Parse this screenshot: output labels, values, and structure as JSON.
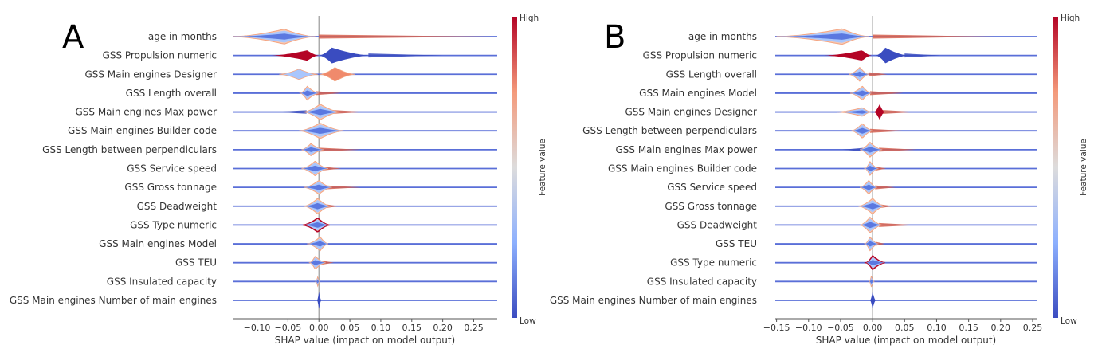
{
  "colors": {
    "low": "#3a4cc0",
    "high": "#b40426",
    "low_light": "#a9c6fd",
    "high_light": "#f08a6c",
    "mixed_edge": "#f4a582"
  },
  "chart_data": [
    {
      "type": "violin",
      "panel_letter": "A",
      "xlabel": "SHAP value (impact on model output)",
      "xlim": [
        -0.138,
        0.288
      ],
      "x_ticks": [
        -0.1,
        -0.05,
        0.0,
        0.05,
        0.1,
        0.15,
        0.2,
        0.25
      ],
      "x_tick_labels": [
        "−0.10",
        "−0.05",
        "0.00",
        "0.05",
        "0.10",
        "0.15",
        "0.20",
        "0.25"
      ],
      "colorbar": {
        "label": "Feature value",
        "high": "High",
        "low": "Low"
      },
      "features": [
        {
          "name": "age in months",
          "lobes": [
            {
              "kind": "mixed",
              "min": -0.138,
              "mode": -0.056,
              "max": -0.006,
              "density": 0.85
            }
          ],
          "tails": [
            {
              "kind": "high",
              "min": 0,
              "max": 0.28
            }
          ]
        },
        {
          "name": "GSS Propulsion numeric",
          "lobes": [
            {
              "kind": "high",
              "min": -0.077,
              "mode": -0.019,
              "max": 0,
              "density": 0.6
            },
            {
              "kind": "low",
              "min": 0,
              "mode": 0.021,
              "max": 0.084,
              "density": 0.9
            }
          ],
          "tails": [
            {
              "kind": "low",
              "min": 0.08,
              "max": 0.2
            }
          ]
        },
        {
          "name": "GSS Main engines Designer",
          "lobes": [
            {
              "kind": "low_light",
              "min": -0.064,
              "mode": -0.032,
              "max": -0.002,
              "density": 0.6
            },
            {
              "kind": "high_light",
              "min": 0.002,
              "mode": 0.026,
              "max": 0.058,
              "density": 0.8
            }
          ],
          "tails": []
        },
        {
          "name": "GSS Length overall",
          "lobes": [
            {
              "kind": "mixed",
              "min": -0.03,
              "mode": -0.019,
              "max": 0,
              "density": 0.8
            }
          ],
          "tails": [
            {
              "kind": "high",
              "min": -0.005,
              "max": 0.036
            }
          ]
        },
        {
          "name": "GSS Main engines Max power",
          "lobes": [
            {
              "kind": "mixed",
              "min": -0.025,
              "mode": 0.002,
              "max": 0.035,
              "density": 0.9
            }
          ],
          "tails": [
            {
              "kind": "low",
              "min": -0.07,
              "max": -0.02
            },
            {
              "kind": "high",
              "min": 0.02,
              "max": 0.075
            }
          ]
        },
        {
          "name": "GSS Main engines Builder code",
          "lobes": [
            {
              "kind": "mixed",
              "min": -0.032,
              "mode": 0.002,
              "max": 0.04,
              "density": 0.9
            }
          ],
          "tails": []
        },
        {
          "name": "GSS Length between perpendiculars",
          "lobes": [
            {
              "kind": "mixed",
              "min": -0.028,
              "mode": -0.013,
              "max": 0.008,
              "density": 0.7
            }
          ],
          "tails": [
            {
              "kind": "high",
              "min": 0,
              "max": 0.067
            }
          ]
        },
        {
          "name": "GSS Service speed",
          "lobes": [
            {
              "kind": "mixed",
              "min": -0.028,
              "mode": -0.006,
              "max": 0.015,
              "density": 0.85
            }
          ],
          "tails": [
            {
              "kind": "high",
              "min": 0.005,
              "max": 0.036
            }
          ]
        },
        {
          "name": "GSS Gross tonnage",
          "lobes": [
            {
              "kind": "mixed",
              "min": -0.024,
              "mode": 0,
              "max": 0.021,
              "density": 0.8
            }
          ],
          "tails": [
            {
              "kind": "high",
              "min": 0.01,
              "max": 0.067
            }
          ]
        },
        {
          "name": "GSS Deadweight",
          "lobes": [
            {
              "kind": "mixed",
              "min": -0.024,
              "mode": -0.002,
              "max": 0.019,
              "density": 0.9
            }
          ],
          "tails": [
            {
              "kind": "high",
              "min": 0.01,
              "max": 0.032
            }
          ]
        },
        {
          "name": "GSS Type numeric",
          "lobes": [
            {
              "kind": "mixed_dark",
              "min": -0.026,
              "mode": -0.002,
              "max": 0.017,
              "density": 0.8
            }
          ],
          "tails": []
        },
        {
          "name": "GSS Main engines Model",
          "lobes": [
            {
              "kind": "mixed",
              "min": -0.019,
              "mode": 0.002,
              "max": 0.015,
              "density": 0.8
            }
          ],
          "tails": []
        },
        {
          "name": "GSS TEU",
          "lobes": [
            {
              "kind": "mixed",
              "min": -0.015,
              "mode": -0.006,
              "max": 0.011,
              "density": 0.75
            }
          ],
          "tails": [
            {
              "kind": "high",
              "min": 0.005,
              "max": 0.024
            }
          ]
        },
        {
          "name": "GSS Insulated capacity",
          "lobes": [
            {
              "kind": "mixed",
              "min": -0.005,
              "mode": -0.002,
              "max": 0.001,
              "density": 0.5
            }
          ],
          "tails": []
        },
        {
          "name": "GSS Main engines Number of main engines",
          "lobes": [
            {
              "kind": "low",
              "min": -0.003,
              "mode": 0,
              "max": 0.004,
              "density": 1
            }
          ],
          "tails": []
        }
      ]
    },
    {
      "type": "violin",
      "panel_letter": "B",
      "xlabel": "SHAP value (impact on model output)",
      "xlim": [
        -0.152,
        0.2575
      ],
      "x_ticks": [
        -0.15,
        -0.1,
        -0.05,
        0.0,
        0.05,
        0.1,
        0.15,
        0.2,
        0.25
      ],
      "x_tick_labels": [
        "−0.15",
        "−0.10",
        "−0.05",
        "0.00",
        "0.05",
        "0.10",
        "0.15",
        "0.20",
        "0.25"
      ],
      "colorbar": {
        "label": "Feature value",
        "high": "High",
        "low": "Low"
      },
      "features": [
        {
          "name": "age in months",
          "lobes": [
            {
              "kind": "mixed",
              "min": -0.15,
              "mode": -0.047,
              "max": -0.006,
              "density": 0.9
            }
          ],
          "tails": [
            {
              "kind": "high",
              "min": 0,
              "max": 0.19
            }
          ]
        },
        {
          "name": "GSS Propulsion numeric",
          "lobes": [
            {
              "kind": "high",
              "min": -0.076,
              "mode": -0.016,
              "max": -0.002,
              "density": 0.6
            },
            {
              "kind": "low",
              "min": 0.005,
              "mode": 0.02,
              "max": 0.056,
              "density": 0.9
            }
          ],
          "tails": [
            {
              "kind": "low",
              "min": 0.05,
              "max": 0.106
            }
          ]
        },
        {
          "name": "GSS Length overall",
          "lobes": [
            {
              "kind": "mixed",
              "min": -0.037,
              "mode": -0.02,
              "max": -0.006,
              "density": 0.8
            }
          ],
          "tails": [
            {
              "kind": "high",
              "min": -0.005,
              "max": 0.023
            }
          ]
        },
        {
          "name": "GSS Main engines Model",
          "lobes": [
            {
              "kind": "mixed",
              "min": -0.035,
              "mode": -0.016,
              "max": -0.002,
              "density": 0.8
            }
          ],
          "tails": [
            {
              "kind": "high",
              "min": -0.004,
              "max": 0.048
            }
          ]
        },
        {
          "name": "GSS Main engines Designer",
          "lobes": [
            {
              "kind": "mixed",
              "min": -0.055,
              "mode": -0.016,
              "max": -0.002,
              "density": 0.5
            },
            {
              "kind": "high",
              "min": 0.002,
              "mode": 0.011,
              "max": 0.019,
              "density": 0.9
            }
          ],
          "tails": [
            {
              "kind": "high",
              "min": 0.015,
              "max": 0.068
            }
          ]
        },
        {
          "name": "GSS Length between perpendiculars",
          "lobes": [
            {
              "kind": "mixed",
              "min": -0.033,
              "mode": -0.016,
              "max": 0,
              "density": 0.85
            }
          ],
          "tails": [
            {
              "kind": "high",
              "min": -0.004,
              "max": 0.052
            }
          ]
        },
        {
          "name": "GSS Main engines Max power",
          "lobes": [
            {
              "kind": "mixed",
              "min": -0.02,
              "mode": -0.004,
              "max": 0.015,
              "density": 0.85
            }
          ],
          "tails": [
            {
              "kind": "low",
              "min": -0.047,
              "max": -0.015
            },
            {
              "kind": "high",
              "min": 0.01,
              "max": 0.069
            }
          ]
        },
        {
          "name": "GSS Main engines Builder code",
          "lobes": [
            {
              "kind": "mixed",
              "min": -0.012,
              "mode": -0.004,
              "max": 0.009,
              "density": 0.8
            }
          ],
          "tails": [
            {
              "kind": "high",
              "min": 0.005,
              "max": 0.021
            }
          ]
        },
        {
          "name": "GSS Service speed",
          "lobes": [
            {
              "kind": "mixed",
              "min": -0.02,
              "mode": -0.006,
              "max": 0.007,
              "density": 0.8
            }
          ],
          "tails": [
            {
              "kind": "high",
              "min": 0.004,
              "max": 0.036
            }
          ]
        },
        {
          "name": "GSS Gross tonnage",
          "lobes": [
            {
              "kind": "mixed",
              "min": -0.022,
              "mode": 0,
              "max": 0.019,
              "density": 0.9
            }
          ],
          "tails": [
            {
              "kind": "high",
              "min": 0.01,
              "max": 0.032
            }
          ]
        },
        {
          "name": "GSS Deadweight",
          "lobes": [
            {
              "kind": "mixed",
              "min": -0.02,
              "mode": -0.004,
              "max": 0.015,
              "density": 0.9
            }
          ],
          "tails": [
            {
              "kind": "high",
              "min": 0.01,
              "max": 0.068
            }
          ]
        },
        {
          "name": "GSS TEU",
          "lobes": [
            {
              "kind": "mixed",
              "min": -0.012,
              "mode": -0.004,
              "max": 0.009,
              "density": 0.8
            }
          ],
          "tails": [
            {
              "kind": "high",
              "min": 0.005,
              "max": 0.019
            }
          ]
        },
        {
          "name": "GSS Type numeric",
          "lobes": [
            {
              "kind": "mixed_dark",
              "min": -0.01,
              "mode": 0,
              "max": 0.019,
              "density": 0.8
            }
          ],
          "tails": []
        },
        {
          "name": "GSS Insulated capacity",
          "lobes": [
            {
              "kind": "mixed",
              "min": -0.005,
              "mode": -0.002,
              "max": 0.002,
              "density": 0.6
            }
          ],
          "tails": []
        },
        {
          "name": "GSS Main engines Number of main engines",
          "lobes": [
            {
              "kind": "low",
              "min": -0.004,
              "mode": 0,
              "max": 0.005,
              "density": 1
            }
          ],
          "tails": []
        }
      ]
    }
  ]
}
